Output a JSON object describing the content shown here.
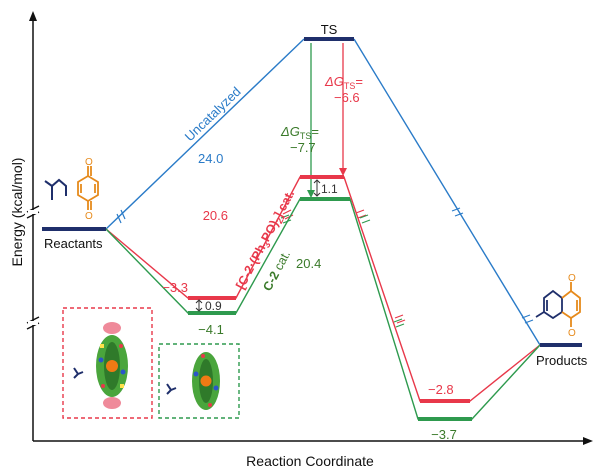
{
  "axes": {
    "y_label": "Energy (kcal/mol)",
    "x_label": "Reaction Coordinate"
  },
  "states": {
    "reactants": "Reactants",
    "products": "Products",
    "ts": "TS"
  },
  "values": {
    "uncat_barrier": "24.0",
    "red_cat_ts": "20.6",
    "green_cat_ts": "20.4",
    "red_int": "−3.3",
    "green_int": "−4.1",
    "int_gap": "0.9",
    "ts_gap": "1.1",
    "red_prod": "−2.8",
    "green_prod": "−3.7"
  },
  "delta_g": {
    "symbol": "ΔG",
    "subscript": "TS",
    "equals": "=",
    "red_value": "−6.6",
    "green_value": "−7.7"
  },
  "pathways": {
    "uncatalyzed": "Uncatalyzed",
    "red_prefix": "[C-2·(Ph",
    "red_sub1": "3",
    "red_mid": "PO)",
    "red_sub2": "2",
    "red_suffix": "] cat.",
    "green_name": "C-2",
    "green_suffix": " cat."
  },
  "colors": {
    "uncatalyzed": "#2a7bc8",
    "red_catalyst": "#e8384a",
    "green_catalyst": "#2e9a4e",
    "level_navy": "#1f2f6b",
    "green_text": "#3a7a2a",
    "reagent_orange": "#e68a1c"
  }
}
